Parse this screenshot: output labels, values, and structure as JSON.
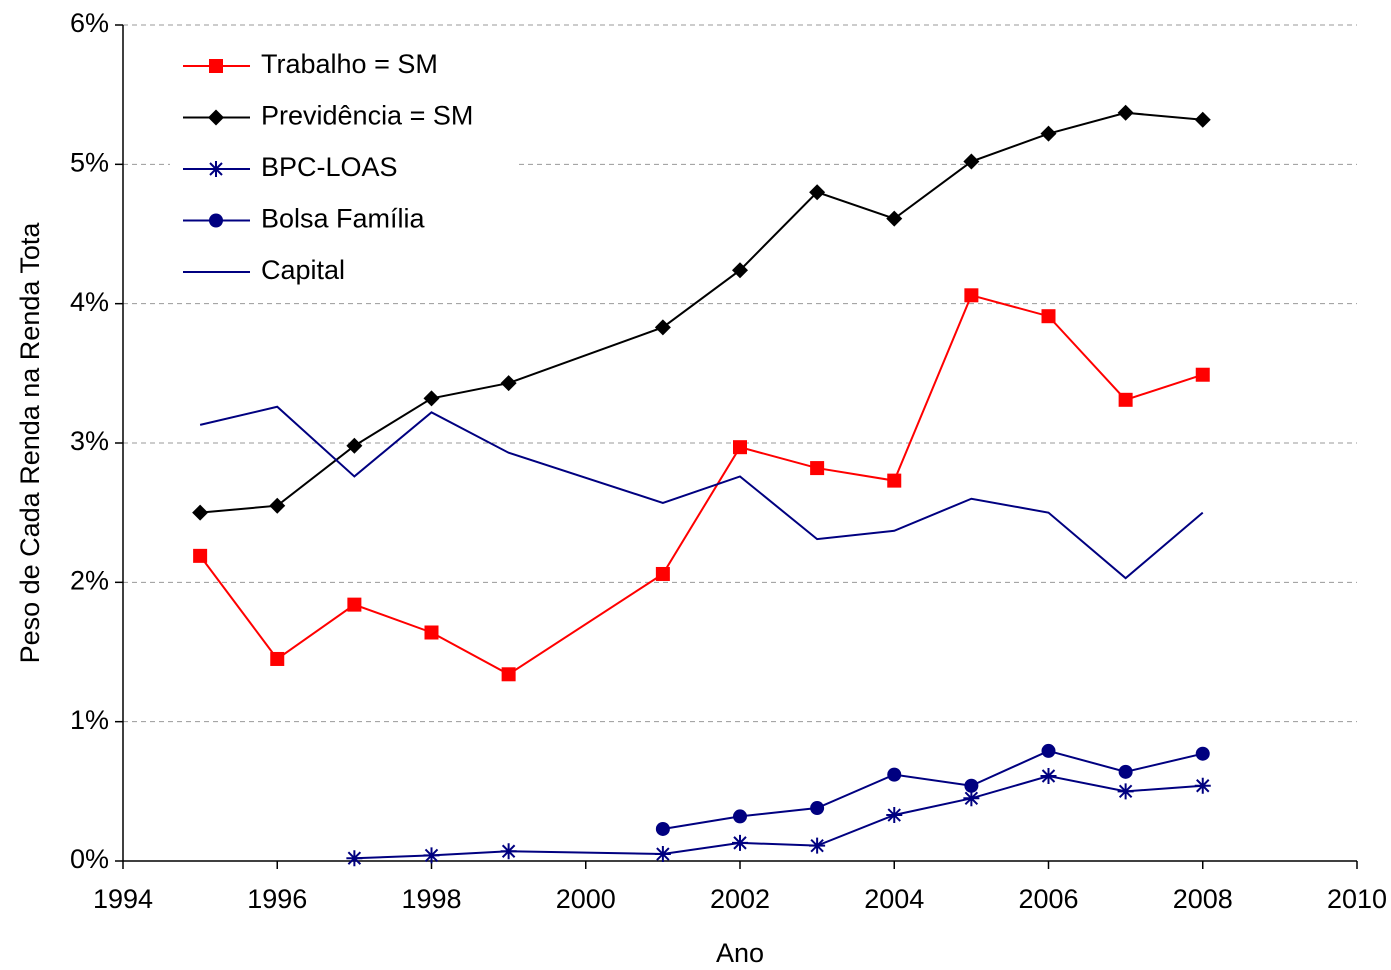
{
  "chart_data": {
    "type": "line",
    "xlabel": "Ano",
    "ylabel": "Peso de Cada Renda na Renda Tota",
    "xlim": [
      1994,
      2010
    ],
    "xticks": [
      1994,
      1996,
      1998,
      2000,
      2002,
      2004,
      2006,
      2008,
      2010
    ],
    "ylim": [
      0,
      6
    ],
    "yticks": [
      {
        "value": 0,
        "label": "0%"
      },
      {
        "value": 1,
        "label": "1%"
      },
      {
        "value": 2,
        "label": "2%"
      },
      {
        "value": 3,
        "label": "3%"
      },
      {
        "value": 4,
        "label": "4%"
      },
      {
        "value": 5,
        "label": "5%"
      },
      {
        "value": 6,
        "label": "6%"
      }
    ],
    "grid": true,
    "legend": "upper left",
    "series": [
      {
        "name": "Trabalho = SM",
        "color": "#ff0000",
        "marker": "square",
        "x": [
          1995,
          1996,
          1997,
          1998,
          1999,
          2001,
          2002,
          2003,
          2004,
          2005,
          2006,
          2007,
          2008
        ],
        "values": [
          2.19,
          1.45,
          1.84,
          1.64,
          1.34,
          2.06,
          2.97,
          2.82,
          2.73,
          4.06,
          3.91,
          3.31,
          3.49
        ]
      },
      {
        "name": "Previdência = SM",
        "color": "#000000",
        "marker": "diamond",
        "x": [
          1995,
          1996,
          1997,
          1998,
          1999,
          2001,
          2002,
          2003,
          2004,
          2005,
          2006,
          2007,
          2008
        ],
        "values": [
          2.5,
          2.55,
          2.98,
          3.32,
          3.43,
          3.83,
          4.24,
          4.8,
          4.61,
          5.02,
          5.22,
          5.37,
          5.32
        ]
      },
      {
        "name": "BPC-LOAS",
        "color": "#000080",
        "marker": "asterisk",
        "x": [
          1997,
          1998,
          1999,
          2001,
          2002,
          2003,
          2004,
          2005,
          2006,
          2007,
          2008
        ],
        "values": [
          0.02,
          0.04,
          0.07,
          0.05,
          0.13,
          0.11,
          0.33,
          0.45,
          0.61,
          0.5,
          0.54
        ]
      },
      {
        "name": "Bolsa Família",
        "color": "#000080",
        "marker": "circle",
        "x": [
          2001,
          2002,
          2003,
          2004,
          2005,
          2006,
          2007,
          2008
        ],
        "values": [
          0.23,
          0.32,
          0.38,
          0.62,
          0.54,
          0.79,
          0.64,
          0.77
        ]
      },
      {
        "name": "Capital",
        "color": "#000080",
        "marker": "none",
        "x": [
          1995,
          1996,
          1997,
          1998,
          1999,
          2001,
          2002,
          2003,
          2004,
          2005,
          2006,
          2007,
          2008
        ],
        "values": [
          3.13,
          3.26,
          2.76,
          3.22,
          2.93,
          2.57,
          2.76,
          2.31,
          2.37,
          2.6,
          2.5,
          2.03,
          2.5
        ]
      }
    ]
  }
}
